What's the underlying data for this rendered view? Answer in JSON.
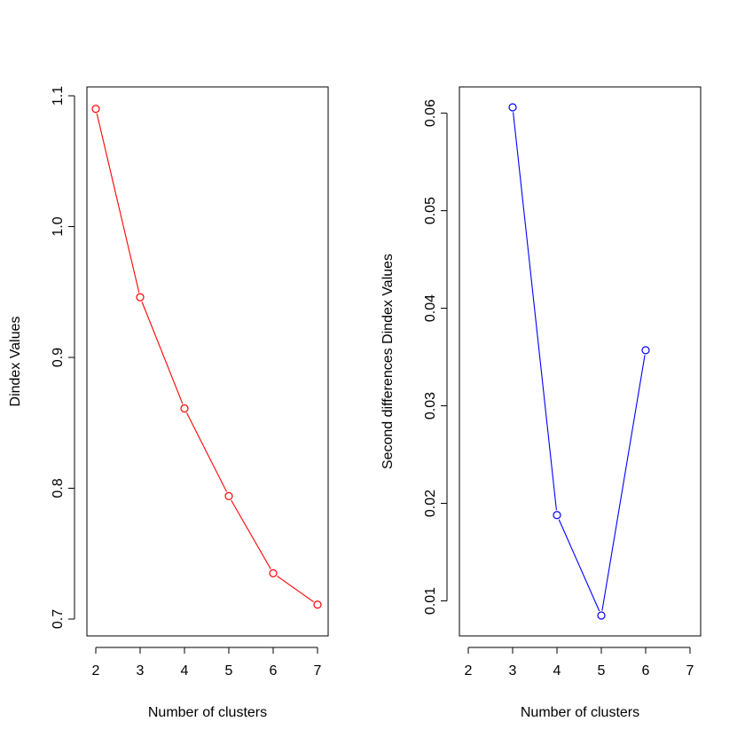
{
  "chart_data": [
    {
      "type": "line",
      "title": "",
      "xlabel": "Number of clusters",
      "ylabel": "Dindex Values",
      "xlim": [
        2,
        7
      ],
      "ylim": [
        0.7,
        1.1
      ],
      "x_ticks": [
        2,
        3,
        4,
        5,
        6,
        7
      ],
      "x_tick_labels": [
        "2",
        "3",
        "4",
        "5",
        "6",
        "7"
      ],
      "y_ticks": [
        0.7,
        0.8,
        0.9,
        1.0,
        1.1
      ],
      "y_tick_labels": [
        "0.7",
        "0.8",
        "0.9",
        "1.0",
        "1.1"
      ],
      "grid": false,
      "color": "#ff0000",
      "marker": "open-circle",
      "series": [
        {
          "x": [
            2,
            3,
            4,
            5,
            6,
            7
          ],
          "y": [
            1.09,
            0.946,
            0.861,
            0.794,
            0.735,
            0.711
          ]
        }
      ]
    },
    {
      "type": "line",
      "title": "",
      "xlabel": "Number of clusters",
      "ylabel": "Second differences Dindex Values",
      "xlim": [
        2,
        7
      ],
      "ylim": [
        0.0085,
        0.0606
      ],
      "x_ticks": [
        2,
        3,
        4,
        5,
        6,
        7
      ],
      "x_tick_labels": [
        "2",
        "3",
        "4",
        "5",
        "6",
        "7"
      ],
      "y_ticks": [
        0.01,
        0.02,
        0.03,
        0.04,
        0.05,
        0.06
      ],
      "y_tick_labels": [
        "0.01",
        "0.02",
        "0.03",
        "0.04",
        "0.05",
        "0.06"
      ],
      "grid": false,
      "color": "#0000ff",
      "marker": "open-circle",
      "series": [
        {
          "x": [
            3,
            4,
            5,
            6
          ],
          "y": [
            0.0606,
            0.0188,
            0.0085,
            0.0357
          ]
        }
      ]
    }
  ]
}
